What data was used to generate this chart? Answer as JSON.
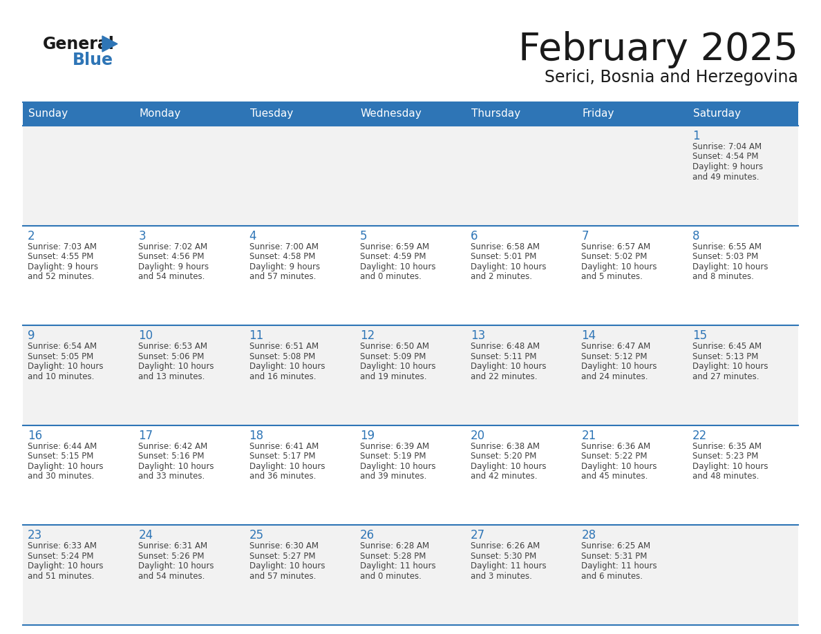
{
  "title": "February 2025",
  "subtitle": "Serici, Bosnia and Herzegovina",
  "days_of_week": [
    "Sunday",
    "Monday",
    "Tuesday",
    "Wednesday",
    "Thursday",
    "Friday",
    "Saturday"
  ],
  "header_bg": "#2E75B6",
  "header_text_color": "#FFFFFF",
  "odd_row_bg": "#F2F2F2",
  "even_row_bg": "#FFFFFF",
  "cell_border_color": "#2E75B6",
  "day_number_color": "#2E75B6",
  "info_text_color": "#404040",
  "title_color": "#1a1a1a",
  "subtitle_color": "#1a1a1a",
  "logo_general_color": "#1a1a1a",
  "logo_blue_color": "#2E75B6",
  "calendar_data": [
    [
      {
        "day": 0,
        "sunrise": "",
        "sunset": "",
        "daylight": ""
      },
      {
        "day": 0,
        "sunrise": "",
        "sunset": "",
        "daylight": ""
      },
      {
        "day": 0,
        "sunrise": "",
        "sunset": "",
        "daylight": ""
      },
      {
        "day": 0,
        "sunrise": "",
        "sunset": "",
        "daylight": ""
      },
      {
        "day": 0,
        "sunrise": "",
        "sunset": "",
        "daylight": ""
      },
      {
        "day": 0,
        "sunrise": "",
        "sunset": "",
        "daylight": ""
      },
      {
        "day": 1,
        "sunrise": "7:04 AM",
        "sunset": "4:54 PM",
        "daylight_h": "9 hours",
        "daylight_m": "and 49 minutes."
      }
    ],
    [
      {
        "day": 2,
        "sunrise": "7:03 AM",
        "sunset": "4:55 PM",
        "daylight_h": "9 hours",
        "daylight_m": "and 52 minutes."
      },
      {
        "day": 3,
        "sunrise": "7:02 AM",
        "sunset": "4:56 PM",
        "daylight_h": "9 hours",
        "daylight_m": "and 54 minutes."
      },
      {
        "day": 4,
        "sunrise": "7:00 AM",
        "sunset": "4:58 PM",
        "daylight_h": "9 hours",
        "daylight_m": "and 57 minutes."
      },
      {
        "day": 5,
        "sunrise": "6:59 AM",
        "sunset": "4:59 PM",
        "daylight_h": "10 hours",
        "daylight_m": "and 0 minutes."
      },
      {
        "day": 6,
        "sunrise": "6:58 AM",
        "sunset": "5:01 PM",
        "daylight_h": "10 hours",
        "daylight_m": "and 2 minutes."
      },
      {
        "day": 7,
        "sunrise": "6:57 AM",
        "sunset": "5:02 PM",
        "daylight_h": "10 hours",
        "daylight_m": "and 5 minutes."
      },
      {
        "day": 8,
        "sunrise": "6:55 AM",
        "sunset": "5:03 PM",
        "daylight_h": "10 hours",
        "daylight_m": "and 8 minutes."
      }
    ],
    [
      {
        "day": 9,
        "sunrise": "6:54 AM",
        "sunset": "5:05 PM",
        "daylight_h": "10 hours",
        "daylight_m": "and 10 minutes."
      },
      {
        "day": 10,
        "sunrise": "6:53 AM",
        "sunset": "5:06 PM",
        "daylight_h": "10 hours",
        "daylight_m": "and 13 minutes."
      },
      {
        "day": 11,
        "sunrise": "6:51 AM",
        "sunset": "5:08 PM",
        "daylight_h": "10 hours",
        "daylight_m": "and 16 minutes."
      },
      {
        "day": 12,
        "sunrise": "6:50 AM",
        "sunset": "5:09 PM",
        "daylight_h": "10 hours",
        "daylight_m": "and 19 minutes."
      },
      {
        "day": 13,
        "sunrise": "6:48 AM",
        "sunset": "5:11 PM",
        "daylight_h": "10 hours",
        "daylight_m": "and 22 minutes."
      },
      {
        "day": 14,
        "sunrise": "6:47 AM",
        "sunset": "5:12 PM",
        "daylight_h": "10 hours",
        "daylight_m": "and 24 minutes."
      },
      {
        "day": 15,
        "sunrise": "6:45 AM",
        "sunset": "5:13 PM",
        "daylight_h": "10 hours",
        "daylight_m": "and 27 minutes."
      }
    ],
    [
      {
        "day": 16,
        "sunrise": "6:44 AM",
        "sunset": "5:15 PM",
        "daylight_h": "10 hours",
        "daylight_m": "and 30 minutes."
      },
      {
        "day": 17,
        "sunrise": "6:42 AM",
        "sunset": "5:16 PM",
        "daylight_h": "10 hours",
        "daylight_m": "and 33 minutes."
      },
      {
        "day": 18,
        "sunrise": "6:41 AM",
        "sunset": "5:17 PM",
        "daylight_h": "10 hours",
        "daylight_m": "and 36 minutes."
      },
      {
        "day": 19,
        "sunrise": "6:39 AM",
        "sunset": "5:19 PM",
        "daylight_h": "10 hours",
        "daylight_m": "and 39 minutes."
      },
      {
        "day": 20,
        "sunrise": "6:38 AM",
        "sunset": "5:20 PM",
        "daylight_h": "10 hours",
        "daylight_m": "and 42 minutes."
      },
      {
        "day": 21,
        "sunrise": "6:36 AM",
        "sunset": "5:22 PM",
        "daylight_h": "10 hours",
        "daylight_m": "and 45 minutes."
      },
      {
        "day": 22,
        "sunrise": "6:35 AM",
        "sunset": "5:23 PM",
        "daylight_h": "10 hours",
        "daylight_m": "and 48 minutes."
      }
    ],
    [
      {
        "day": 23,
        "sunrise": "6:33 AM",
        "sunset": "5:24 PM",
        "daylight_h": "10 hours",
        "daylight_m": "and 51 minutes."
      },
      {
        "day": 24,
        "sunrise": "6:31 AM",
        "sunset": "5:26 PM",
        "daylight_h": "10 hours",
        "daylight_m": "and 54 minutes."
      },
      {
        "day": 25,
        "sunrise": "6:30 AM",
        "sunset": "5:27 PM",
        "daylight_h": "10 hours",
        "daylight_m": "and 57 minutes."
      },
      {
        "day": 26,
        "sunrise": "6:28 AM",
        "sunset": "5:28 PM",
        "daylight_h": "11 hours",
        "daylight_m": "and 0 minutes."
      },
      {
        "day": 27,
        "sunrise": "6:26 AM",
        "sunset": "5:30 PM",
        "daylight_h": "11 hours",
        "daylight_m": "and 3 minutes."
      },
      {
        "day": 28,
        "sunrise": "6:25 AM",
        "sunset": "5:31 PM",
        "daylight_h": "11 hours",
        "daylight_m": "and 6 minutes."
      },
      {
        "day": 0,
        "sunrise": "",
        "sunset": "",
        "daylight_h": "",
        "daylight_m": ""
      }
    ]
  ]
}
